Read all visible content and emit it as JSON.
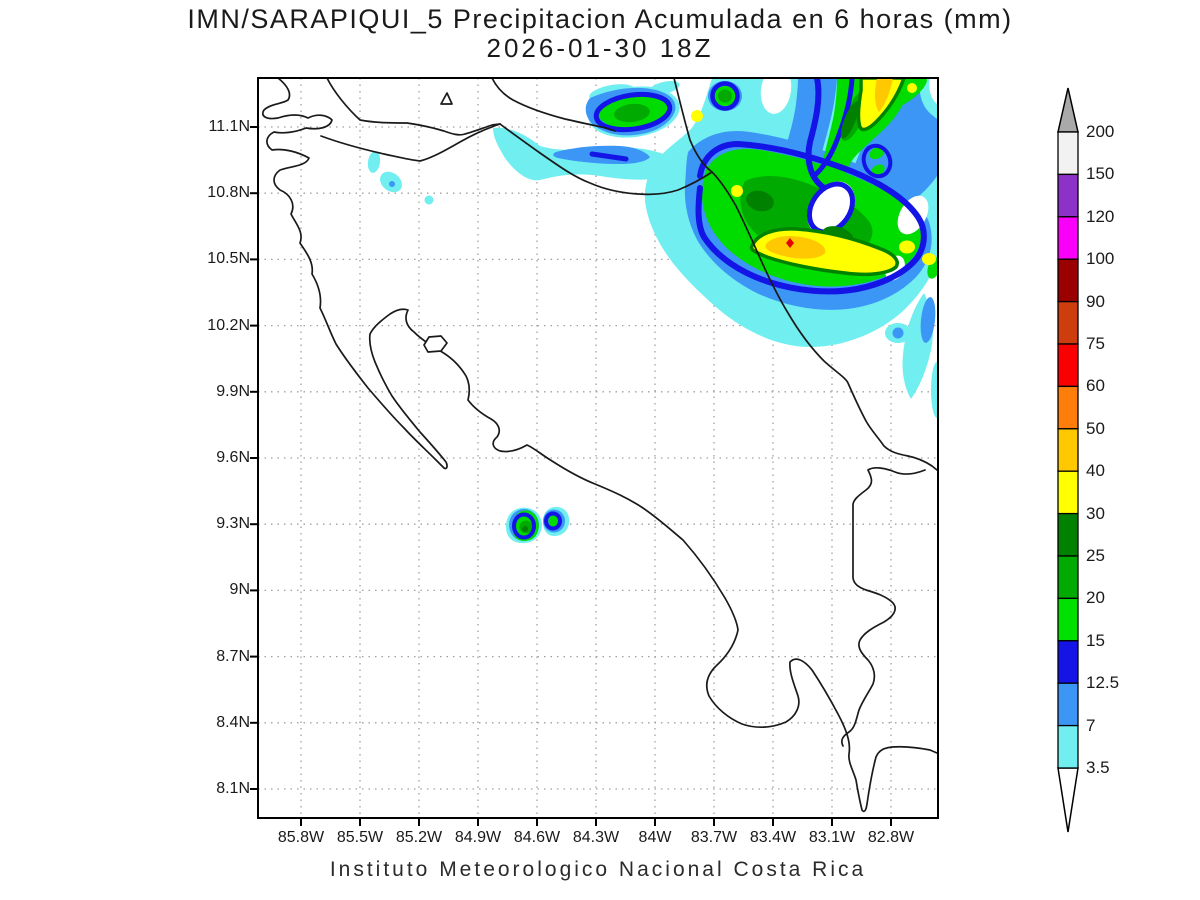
{
  "title": {
    "line1": "IMN/SARAPIQUI_5 Precipitacion Acumulada en 6 horas (mm)",
    "line2": "2026-01-30 18Z"
  },
  "footer": "Instituto Meteorologico Nacional Costa Rica",
  "axes": {
    "lat_labels": [
      "11.1N",
      "10.8N",
      "10.5N",
      "10.2N",
      "9.9N",
      "9.6N",
      "9.3N",
      "9N",
      "8.7N",
      "8.4N",
      "8.1N"
    ],
    "lon_labels": [
      "85.8W",
      "85.5W",
      "85.2W",
      "84.9W",
      "84.6W",
      "84.3W",
      "84W",
      "83.7W",
      "83.4W",
      "83.1W",
      "82.8W"
    ]
  },
  "colorbar": {
    "tick_labels": [
      "200",
      "150",
      "120",
      "100",
      "90",
      "75",
      "60",
      "50",
      "40",
      "30",
      "25",
      "20",
      "15",
      "12.5",
      "7",
      "3.5"
    ],
    "segment_colors_top_to_bottom": [
      "#f2f2f2",
      "#8c32c8",
      "#fa00fa",
      "#9b0000",
      "#cd3d0d",
      "#fa0000",
      "#ff7d0a",
      "#ffc800",
      "#ffff00",
      "#008200",
      "#00aa00",
      "#00e100",
      "#1414e6",
      "#3c96f5",
      "#70eef0"
    ],
    "arrow_top_color": "#a9a9a9",
    "arrow_bottom_color": "#ffffff"
  },
  "palette": {
    "c_3_5": "#70eef0",
    "c_7": "#3c96f5",
    "c_12_5": "#1414e6",
    "c_15": "#00dc00",
    "c_20": "#00aa00",
    "c_25": "#008200",
    "c_30": "#ffff00",
    "c_40": "#ffc800",
    "c_50": "#ff7d0a",
    "c_60": "#e60000",
    "white": "#ffffff",
    "grid": "#a0a0a0",
    "coast": "#1a1a1a"
  }
}
